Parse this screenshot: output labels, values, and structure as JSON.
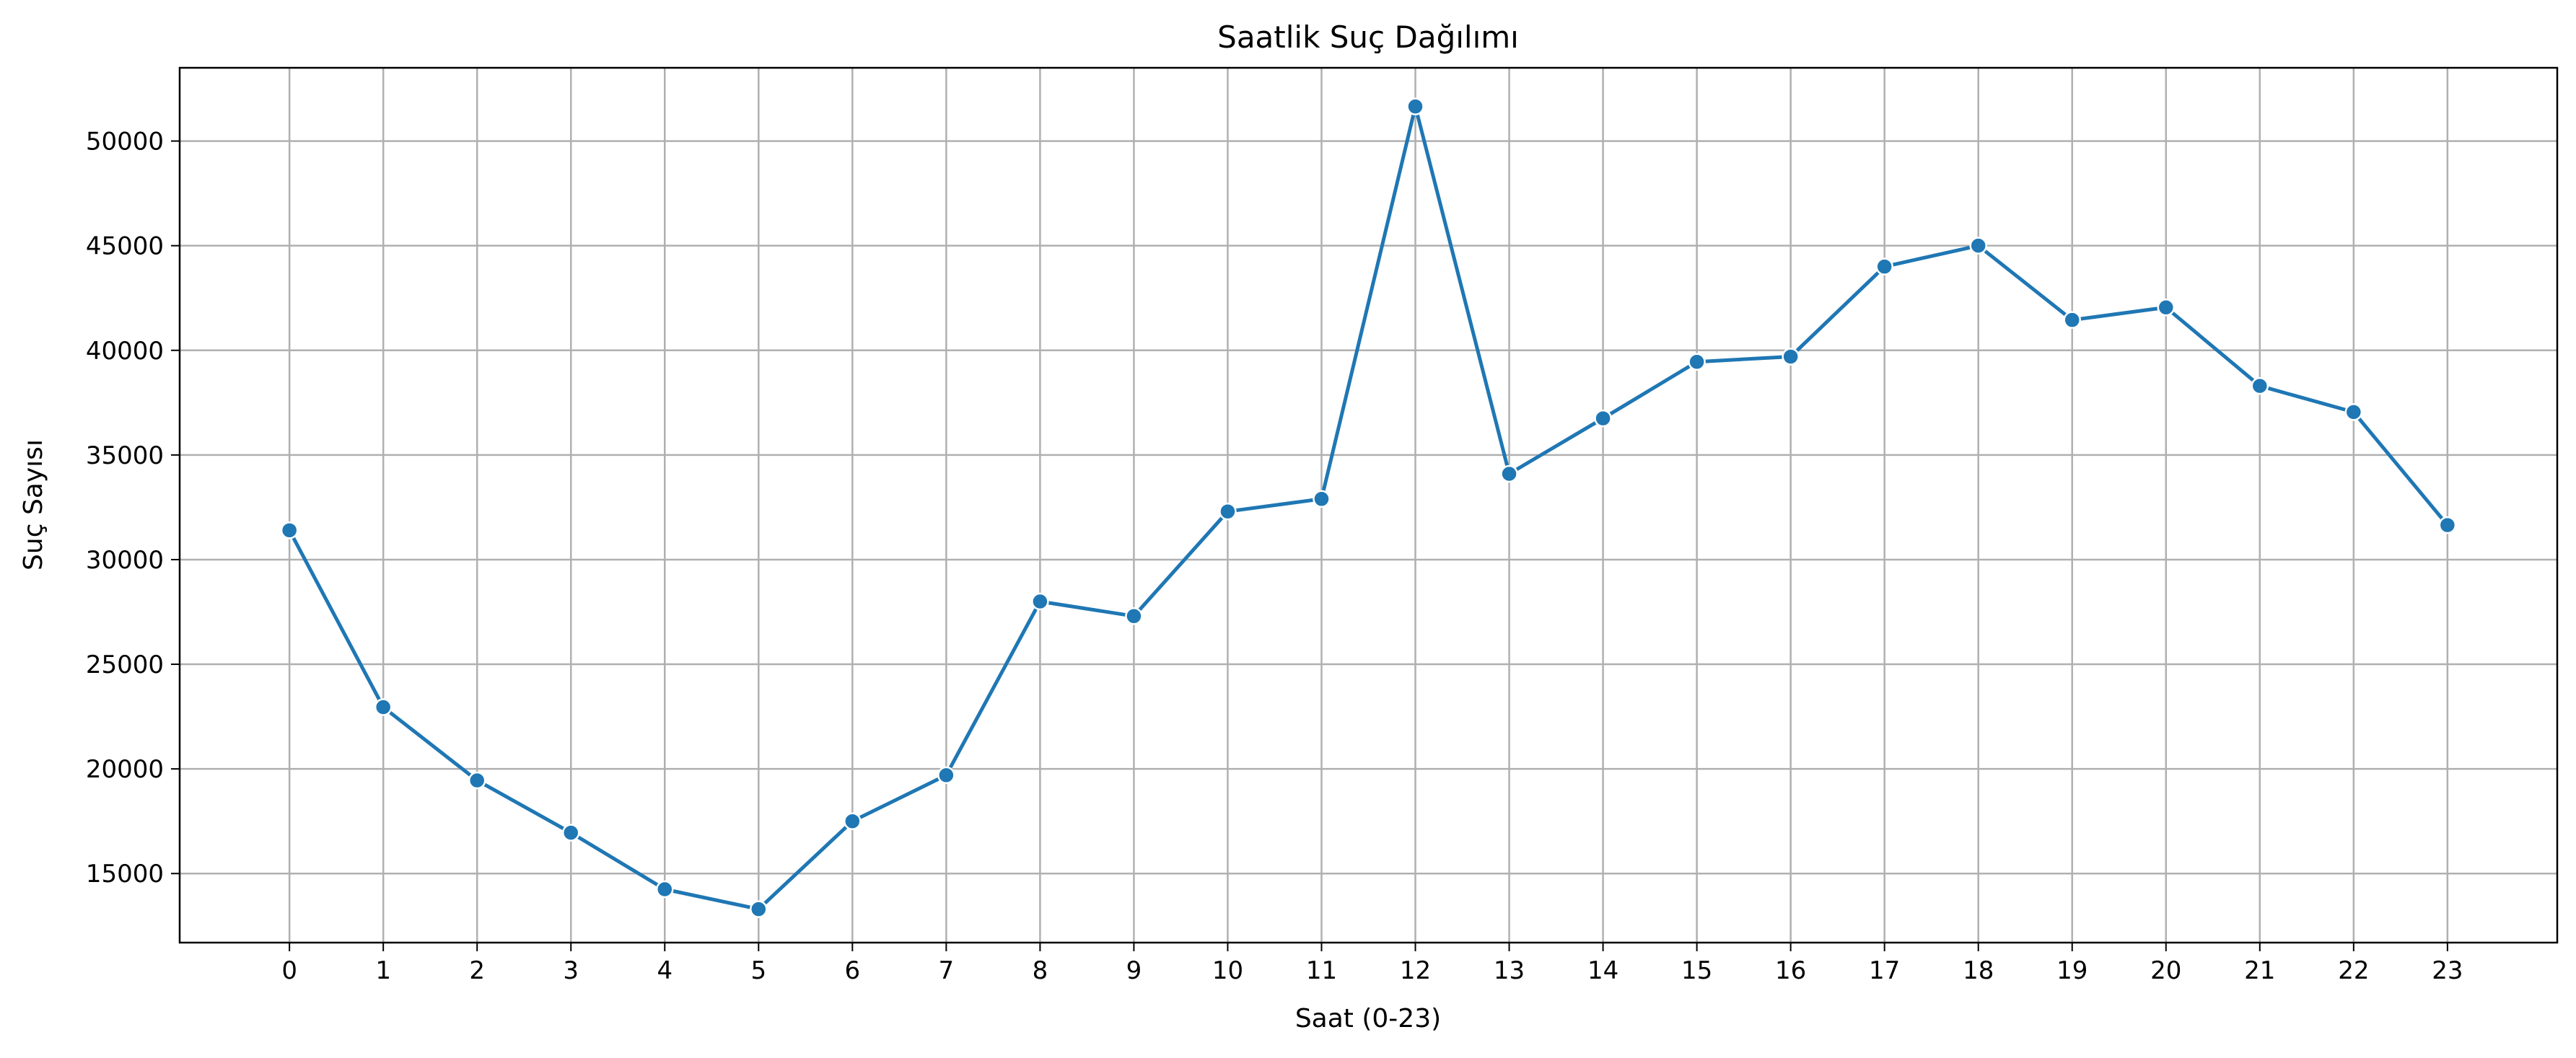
{
  "chart_data": {
    "type": "line",
    "title": "Saatlik Suç Dağılımı",
    "xlabel": "Saat (0-23)",
    "ylabel": "Suç Sayısı",
    "x": [
      0,
      1,
      2,
      3,
      4,
      5,
      6,
      7,
      8,
      9,
      10,
      11,
      12,
      13,
      14,
      15,
      16,
      17,
      18,
      19,
      20,
      21,
      22,
      23
    ],
    "series": [
      {
        "color": "#1f77b4",
        "values": [
          31400,
          22950,
          19450,
          16950,
          14250,
          13300,
          17500,
          19700,
          28000,
          27300,
          32300,
          32900,
          51650,
          34100,
          36750,
          39450,
          39700,
          44000,
          45000,
          41450,
          42050,
          38300,
          37050,
          31650
        ]
      }
    ],
    "xlim": [
      -1.17,
      24.17
    ],
    "ylim": [
      11700,
      53500
    ],
    "yticks": [
      15000,
      20000,
      25000,
      30000,
      35000,
      40000,
      45000,
      50000
    ],
    "grid": true,
    "marker": "circle"
  }
}
